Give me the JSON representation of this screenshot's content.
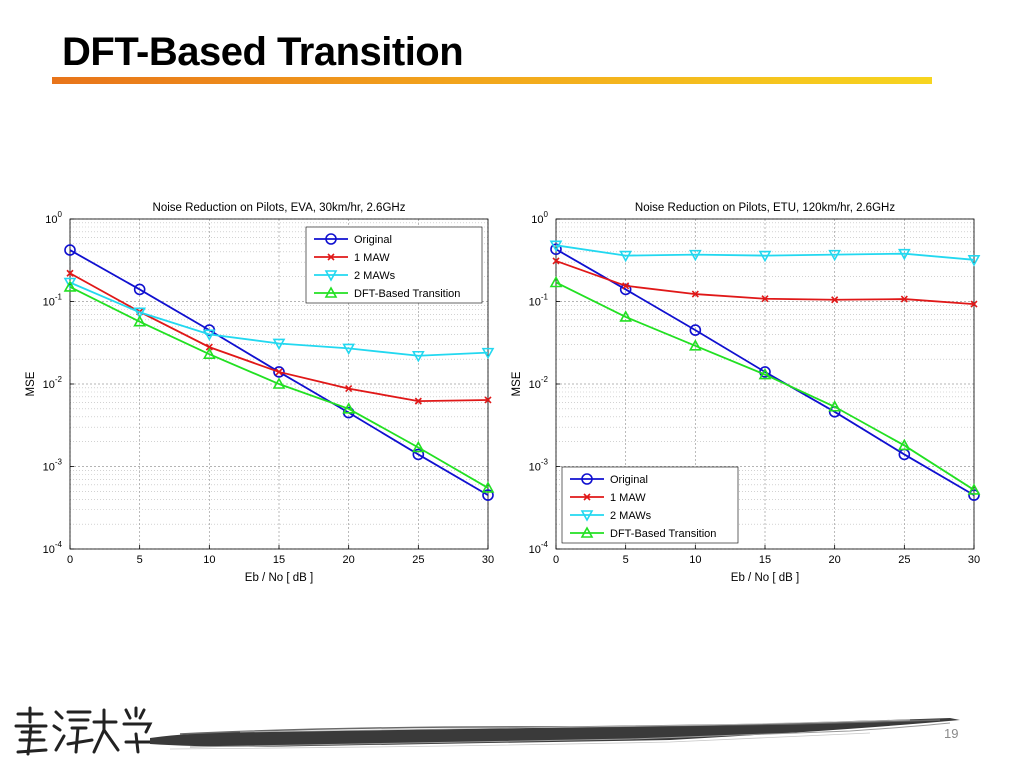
{
  "slide": {
    "title": "DFT-Based Transition",
    "page_number": "19",
    "logo_text": "臺灣大學"
  },
  "colors": {
    "Original": "#1010d0",
    "1 MAW": "#e01818",
    "2 MAWs": "#22d8f0",
    "DFT-Based Transition": "#22e022",
    "title_rule_start": "#e8741a",
    "title_rule_end": "#f7d51f"
  },
  "chart_data": [
    {
      "type": "line",
      "title": "Noise Reduction on Pilots, EVA, 30km/hr, 2.6GHz",
      "xlabel": "Eb / No [ dB ]",
      "ylabel": "MSE",
      "yscale": "log",
      "xlim": [
        0,
        30
      ],
      "ylim": [
        0.0001,
        1
      ],
      "xticks": [
        "0",
        "5",
        "10",
        "15",
        "20",
        "25",
        "30"
      ],
      "yticks": [
        {
          "base": "10",
          "exp": "0"
        },
        {
          "base": "10",
          "exp": "-1"
        },
        {
          "base": "10",
          "exp": "-2"
        },
        {
          "base": "10",
          "exp": "-3"
        },
        {
          "base": "10",
          "exp": "-4"
        }
      ],
      "grid": true,
      "legend_position": "top-right",
      "x": [
        0,
        5,
        10,
        15,
        20,
        25,
        30
      ],
      "series": [
        {
          "name": "Original",
          "marker": "circle",
          "values": [
            0.42,
            0.14,
            0.045,
            0.014,
            0.0045,
            0.0014,
            0.00045
          ]
        },
        {
          "name": "1 MAW",
          "marker": "x",
          "values": [
            0.22,
            0.075,
            0.028,
            0.014,
            0.0088,
            0.0062,
            0.0064
          ]
        },
        {
          "name": "2 MAWs",
          "marker": "triangle-down",
          "values": [
            0.17,
            0.074,
            0.04,
            0.031,
            0.027,
            0.022,
            0.024
          ]
        },
        {
          "name": "DFT-Based Transition",
          "marker": "triangle-up",
          "values": [
            0.15,
            0.057,
            0.023,
            0.01,
            0.005,
            0.0017,
            0.00055
          ]
        }
      ]
    },
    {
      "type": "line",
      "title": "Noise Reduction on Pilots, ETU, 120km/hr, 2.6GHz",
      "xlabel": "Eb / No [ dB ]",
      "ylabel": "MSE",
      "yscale": "log",
      "xlim": [
        0,
        30
      ],
      "ylim": [
        0.0001,
        1
      ],
      "xticks": [
        "0",
        "5",
        "10",
        "15",
        "20",
        "25",
        "30"
      ],
      "yticks": [
        {
          "base": "10",
          "exp": "0"
        },
        {
          "base": "10",
          "exp": "-1"
        },
        {
          "base": "10",
          "exp": "-2"
        },
        {
          "base": "10",
          "exp": "-3"
        },
        {
          "base": "10",
          "exp": "-4"
        }
      ],
      "grid": true,
      "legend_position": "bottom-left",
      "x": [
        0,
        5,
        10,
        15,
        20,
        25,
        30
      ],
      "series": [
        {
          "name": "Original",
          "marker": "circle",
          "values": [
            0.43,
            0.14,
            0.045,
            0.014,
            0.0046,
            0.0014,
            0.00045
          ]
        },
        {
          "name": "1 MAW",
          "marker": "x",
          "values": [
            0.31,
            0.155,
            0.123,
            0.108,
            0.105,
            0.107,
            0.093
          ]
        },
        {
          "name": "2 MAWs",
          "marker": "triangle-down",
          "values": [
            0.48,
            0.36,
            0.37,
            0.36,
            0.37,
            0.38,
            0.32
          ]
        },
        {
          "name": "DFT-Based Transition",
          "marker": "triangle-up",
          "values": [
            0.17,
            0.065,
            0.029,
            0.013,
            0.0053,
            0.0018,
            0.00052
          ]
        }
      ]
    }
  ]
}
